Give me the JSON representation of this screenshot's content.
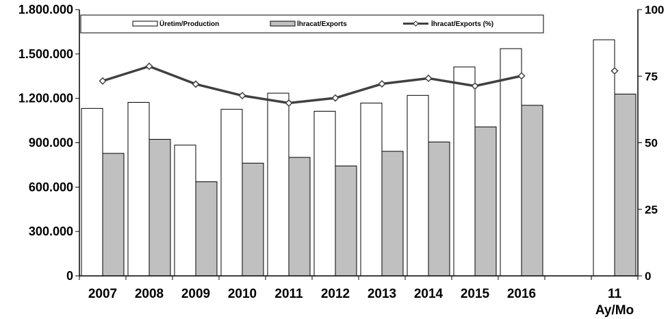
{
  "chart_data": {
    "type": "bar",
    "categories": [
      "2007",
      "2008",
      "2009",
      "2010",
      "2011",
      "2012",
      "2013",
      "2014",
      "2015",
      "2016",
      "",
      "11"
    ],
    "category_sublabels": [
      "",
      "",
      "",
      "",
      "",
      "",
      "",
      "",
      "",
      "",
      "",
      "Ay/Mo"
    ],
    "series": [
      {
        "name": "Üretim/Production",
        "kind": "bar",
        "axis": "left",
        "color": "#ffffff",
        "values": [
          1132000,
          1173000,
          884000,
          1126000,
          1235000,
          1113000,
          1168000,
          1220000,
          1412000,
          1536000,
          null,
          1596000
        ]
      },
      {
        "name": "İhracat/Exports",
        "kind": "bar",
        "axis": "left",
        "color": "#c0c0c0",
        "values": [
          828000,
          923000,
          636000,
          762000,
          801000,
          743000,
          842000,
          905000,
          1007000,
          1153000,
          null,
          1229000
        ]
      },
      {
        "name": "İhracat/Exports (%)",
        "kind": "line",
        "axis": "right",
        "color": "#404040",
        "values": [
          73.2,
          78.7,
          72.0,
          67.7,
          64.9,
          66.8,
          72.1,
          74.2,
          71.3,
          75.1,
          null,
          77.0
        ],
        "connect_until_index": 9
      }
    ],
    "y_left": {
      "ylim": [
        0,
        1800000
      ],
      "ticks": [
        0,
        300000,
        600000,
        900000,
        1200000,
        1500000,
        1800000
      ],
      "tick_labels": [
        "0",
        "300.000",
        "600.000",
        "900.000",
        "1.200.000",
        "1.500.000",
        "1.800.000"
      ]
    },
    "y_right": {
      "ylim": [
        0,
        100
      ],
      "ticks": [
        0,
        25,
        50,
        75,
        100
      ],
      "tick_labels": [
        "0",
        "25",
        "50",
        "75",
        "100"
      ]
    },
    "grid": false,
    "legend_position": "top"
  }
}
